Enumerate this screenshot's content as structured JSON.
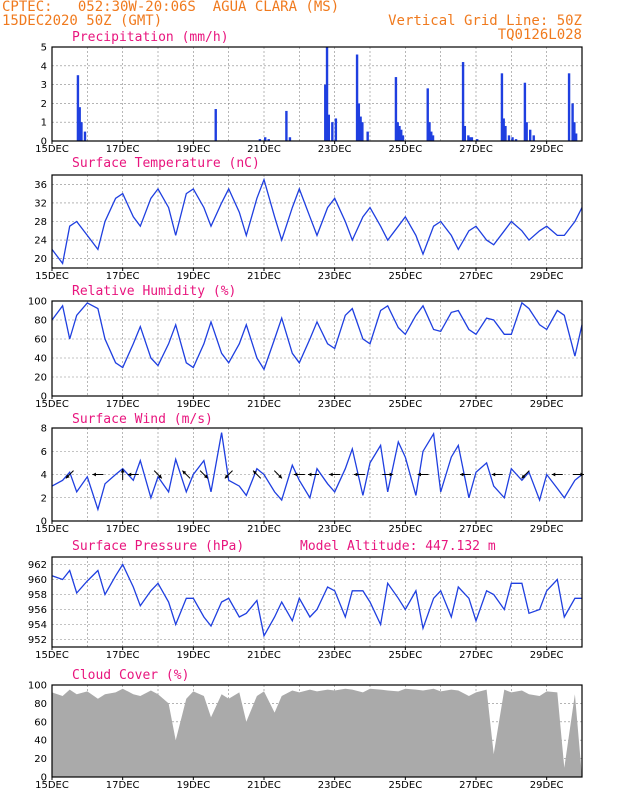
{
  "header": {
    "source_line": "CPTEC:   052:30W-20:06S  AGUA CLARA (MS)",
    "date_line": "15DEC2020 50Z (GMT)",
    "grid_note": "Vertical Grid Line: 50Z",
    "code": "TQ0126L028"
  },
  "colors": {
    "header": "#f07a1e",
    "title": "#e8157e",
    "line": "#1f3fe0",
    "cloud": "#aaaaaa"
  },
  "x_ticks": [
    "15DEC",
    "17DEC",
    "19DEC",
    "21DEC",
    "23DEC",
    "25DEC",
    "27DEC",
    "29DEC"
  ],
  "x_range_days": [
    15,
    30
  ],
  "chart_data": [
    {
      "type": "bar",
      "title": "Precipitation (mm/h)",
      "ylim": [
        0,
        5
      ],
      "yticks": [
        0,
        1,
        2,
        3,
        4,
        5
      ],
      "x": [
        15.7,
        15.75,
        15.8,
        15.9,
        19.6,
        20.85,
        21.0,
        21.1,
        21.6,
        21.7,
        22.7,
        22.75,
        22.8,
        22.9,
        23.0,
        23.6,
        23.65,
        23.7,
        23.75,
        23.9,
        24.7,
        24.75,
        24.8,
        24.85,
        24.9,
        25.6,
        25.65,
        25.7,
        25.75,
        26.6,
        26.65,
        26.75,
        26.8,
        26.85,
        27.0,
        27.7,
        27.75,
        27.8,
        27.9,
        28.0,
        28.1,
        28.35,
        28.4,
        28.5,
        28.6,
        29.6,
        29.7,
        29.75,
        29.8
      ],
      "values": [
        3.5,
        1.8,
        1.0,
        0.5,
        1.7,
        0.1,
        0.2,
        0.1,
        1.6,
        0.2,
        3.0,
        5.0,
        1.4,
        1.0,
        1.2,
        4.6,
        2.0,
        1.3,
        1.0,
        0.5,
        3.4,
        1.0,
        0.8,
        0.6,
        0.3,
        2.8,
        1.0,
        0.5,
        0.3,
        4.2,
        0.8,
        0.3,
        0.2,
        0.2,
        0.1,
        3.6,
        1.2,
        0.8,
        0.3,
        0.2,
        0.1,
        3.1,
        1.0,
        0.6,
        0.3,
        3.6,
        2.0,
        1.0,
        0.4
      ]
    },
    {
      "type": "line",
      "title": "Surface Temperature (nC)",
      "ylim": [
        18,
        38
      ],
      "yticks": [
        20,
        24,
        28,
        32,
        36
      ],
      "x": [
        15.0,
        15.3,
        15.5,
        15.7,
        16.0,
        16.3,
        16.5,
        16.8,
        17.0,
        17.3,
        17.5,
        17.8,
        18.0,
        18.3,
        18.5,
        18.8,
        19.0,
        19.3,
        19.5,
        19.8,
        20.0,
        20.3,
        20.5,
        20.8,
        21.0,
        21.3,
        21.5,
        21.8,
        22.0,
        22.3,
        22.5,
        22.8,
        23.0,
        23.3,
        23.5,
        23.8,
        24.0,
        24.3,
        24.5,
        24.8,
        25.0,
        25.3,
        25.5,
        25.8,
        26.0,
        26.3,
        26.5,
        26.8,
        27.0,
        27.3,
        27.5,
        27.8,
        28.0,
        28.3,
        28.5,
        28.8,
        29.0,
        29.3,
        29.5,
        29.8,
        30.0
      ],
      "values": [
        22.0,
        19.0,
        27.0,
        28.0,
        25.0,
        22.0,
        28.0,
        33.0,
        34.0,
        29.0,
        27.0,
        33.0,
        35.0,
        31.0,
        25.0,
        34.0,
        35.0,
        31.0,
        27.0,
        32.0,
        35.0,
        30.0,
        25.0,
        33.0,
        37.0,
        29.0,
        24.0,
        31.0,
        35.0,
        29.0,
        25.0,
        31.0,
        33.0,
        28.0,
        24.0,
        29.0,
        31.0,
        27.0,
        24.0,
        27.0,
        29.0,
        25.0,
        21.0,
        27.0,
        28.0,
        25.0,
        22.0,
        26.0,
        27.0,
        24.0,
        23.0,
        26.0,
        28.0,
        26.0,
        24.0,
        26.0,
        27.0,
        25.0,
        25.0,
        28.0,
        31.0
      ]
    },
    {
      "type": "line",
      "title": "Relative Humidity (%)",
      "ylim": [
        0,
        100
      ],
      "yticks": [
        0,
        20,
        40,
        60,
        80,
        100
      ],
      "x": [
        15.0,
        15.3,
        15.5,
        15.7,
        16.0,
        16.3,
        16.5,
        16.8,
        17.0,
        17.3,
        17.5,
        17.8,
        18.0,
        18.3,
        18.5,
        18.8,
        19.0,
        19.3,
        19.5,
        19.8,
        20.0,
        20.3,
        20.5,
        20.8,
        21.0,
        21.3,
        21.5,
        21.8,
        22.0,
        22.3,
        22.5,
        22.8,
        23.0,
        23.3,
        23.5,
        23.8,
        24.0,
        24.3,
        24.5,
        24.8,
        25.0,
        25.3,
        25.5,
        25.8,
        26.0,
        26.3,
        26.5,
        26.8,
        27.0,
        27.3,
        27.5,
        27.8,
        28.0,
        28.3,
        28.5,
        28.8,
        29.0,
        29.3,
        29.5,
        29.8,
        30.0
      ],
      "values": [
        80.0,
        95.0,
        60.0,
        85.0,
        98.0,
        92.0,
        60.0,
        35.0,
        30.0,
        55.0,
        73.0,
        40.0,
        32.0,
        55.0,
        75.0,
        35.0,
        30.0,
        55.0,
        78.0,
        45.0,
        35.0,
        55.0,
        75.0,
        40.0,
        28.0,
        60.0,
        82.0,
        45.0,
        35.0,
        60.0,
        78.0,
        55.0,
        50.0,
        85.0,
        92.0,
        60.0,
        55.0,
        90.0,
        95.0,
        72.0,
        65.0,
        85.0,
        95.0,
        70.0,
        68.0,
        88.0,
        90.0,
        70.0,
        65.0,
        82.0,
        80.0,
        65.0,
        65.0,
        98.0,
        92.0,
        75.0,
        70.0,
        90.0,
        85.0,
        42.0,
        75.0
      ]
    },
    {
      "type": "line",
      "title": "Surface Wind (m/s)",
      "ylim": [
        0,
        8
      ],
      "yticks": [
        0,
        2,
        4,
        6,
        8
      ],
      "x": [
        15.0,
        15.3,
        15.5,
        15.7,
        16.0,
        16.3,
        16.5,
        16.8,
        17.0,
        17.3,
        17.5,
        17.8,
        18.0,
        18.3,
        18.5,
        18.8,
        19.0,
        19.3,
        19.5,
        19.8,
        20.0,
        20.3,
        20.5,
        20.8,
        21.0,
        21.3,
        21.5,
        21.8,
        22.0,
        22.3,
        22.5,
        22.8,
        23.0,
        23.3,
        23.5,
        23.8,
        24.0,
        24.3,
        24.5,
        24.8,
        25.0,
        25.3,
        25.5,
        25.8,
        26.0,
        26.3,
        26.5,
        26.8,
        27.0,
        27.3,
        27.5,
        27.8,
        28.0,
        28.3,
        28.5,
        28.8,
        29.0,
        29.3,
        29.5,
        29.8,
        30.0
      ],
      "values": [
        3.0,
        3.5,
        4.2,
        2.5,
        3.8,
        1.0,
        3.2,
        4.0,
        4.5,
        3.5,
        5.2,
        2.0,
        3.8,
        2.5,
        5.3,
        2.5,
        4.0,
        5.2,
        2.5,
        7.6,
        3.5,
        3.0,
        2.2,
        4.5,
        4.0,
        2.5,
        1.8,
        4.8,
        3.5,
        2.0,
        4.5,
        3.2,
        2.5,
        4.5,
        6.2,
        2.2,
        5.0,
        6.5,
        2.5,
        6.8,
        5.5,
        2.2,
        6.0,
        7.5,
        2.5,
        5.5,
        6.5,
        2.0,
        4.2,
        5.0,
        3.0,
        2.0,
        4.5,
        3.5,
        4.2,
        1.8,
        4.0,
        2.8,
        2.0,
        3.5,
        4.0
      ]
    },
    {
      "type": "line",
      "title": "Surface Pressure (hPa)",
      "ylim": [
        951,
        963
      ],
      "yticks": [
        952,
        954,
        956,
        958,
        960,
        962
      ],
      "x": [
        15.0,
        15.3,
        15.5,
        15.7,
        16.0,
        16.3,
        16.5,
        16.8,
        17.0,
        17.3,
        17.5,
        17.8,
        18.0,
        18.3,
        18.5,
        18.8,
        19.0,
        19.3,
        19.5,
        19.8,
        20.0,
        20.3,
        20.5,
        20.8,
        21.0,
        21.3,
        21.5,
        21.8,
        22.0,
        22.3,
        22.5,
        22.8,
        23.0,
        23.3,
        23.5,
        23.8,
        24.0,
        24.3,
        24.5,
        24.8,
        25.0,
        25.3,
        25.5,
        25.8,
        26.0,
        26.3,
        26.5,
        26.8,
        27.0,
        27.3,
        27.5,
        27.8,
        28.0,
        28.3,
        28.5,
        28.8,
        29.0,
        29.3,
        29.5,
        29.8,
        30.0
      ],
      "values": [
        960.5,
        960.0,
        961.2,
        958.2,
        959.8,
        961.2,
        958.0,
        960.5,
        962.0,
        959.0,
        956.5,
        958.5,
        959.5,
        957.0,
        954.0,
        957.5,
        957.5,
        955.0,
        953.8,
        957.0,
        957.5,
        955.0,
        955.5,
        957.2,
        952.5,
        955.0,
        957.0,
        954.5,
        957.5,
        955.0,
        956.0,
        959.0,
        958.5,
        955.0,
        958.5,
        958.5,
        957.0,
        954.0,
        959.5,
        957.5,
        956.0,
        958.5,
        953.5,
        957.5,
        958.5,
        955.0,
        959.0,
        957.5,
        954.5,
        958.5,
        958.0,
        956.0,
        959.5,
        959.5,
        955.5,
        956.0,
        958.5,
        960.0,
        955.0,
        957.5,
        957.5
      ]
    },
    {
      "type": "area",
      "title": "Cloud Cover (%)",
      "ylim": [
        0,
        100
      ],
      "yticks": [
        0,
        20,
        40,
        60,
        80,
        100
      ],
      "x": [
        15.0,
        15.3,
        15.5,
        15.7,
        16.0,
        16.3,
        16.5,
        16.8,
        17.0,
        17.3,
        17.5,
        17.8,
        18.0,
        18.3,
        18.5,
        18.8,
        19.0,
        19.3,
        19.5,
        19.8,
        20.0,
        20.3,
        20.5,
        20.8,
        21.0,
        21.3,
        21.5,
        21.8,
        22.0,
        22.3,
        22.5,
        22.8,
        23.0,
        23.3,
        23.5,
        23.8,
        24.0,
        24.3,
        24.5,
        24.8,
        25.0,
        25.3,
        25.5,
        25.8,
        26.0,
        26.3,
        26.5,
        26.8,
        27.0,
        27.3,
        27.5,
        27.8,
        28.0,
        28.3,
        28.5,
        28.8,
        29.0,
        29.3,
        29.5,
        29.8,
        30.0
      ],
      "values": [
        92.0,
        88.0,
        95.0,
        90.0,
        93.0,
        85.0,
        90.0,
        92.0,
        96.0,
        90.0,
        88.0,
        94.0,
        90.0,
        80.0,
        40.0,
        85.0,
        93.0,
        88.0,
        65.0,
        90.0,
        85.0,
        92.0,
        60.0,
        88.0,
        93.0,
        70.0,
        88.0,
        94.0,
        92.0,
        95.0,
        93.0,
        95.0,
        94.0,
        96.0,
        95.0,
        92.0,
        96.0,
        95.0,
        94.0,
        93.0,
        96.0,
        95.0,
        94.0,
        96.0,
        93.0,
        95.0,
        94.0,
        88.0,
        92.0,
        95.0,
        25.0,
        95.0,
        92.0,
        94.0,
        90.0,
        88.0,
        93.0,
        92.0,
        10.0,
        90.0,
        0.0
      ]
    }
  ],
  "pressure_extra": "Model Altitude: 447.132 m",
  "wind_vectors": [
    {
      "t": 15.5,
      "dir": "sw"
    },
    {
      "t": 16.3,
      "dir": "w"
    },
    {
      "t": 17.0,
      "dir": "n"
    },
    {
      "t": 17.3,
      "dir": "w"
    },
    {
      "t": 18.0,
      "dir": "se"
    },
    {
      "t": 18.8,
      "dir": "nw"
    },
    {
      "t": 19.3,
      "dir": "se"
    },
    {
      "t": 20.0,
      "dir": "sw"
    },
    {
      "t": 20.8,
      "dir": "nw"
    },
    {
      "t": 21.4,
      "dir": "se"
    },
    {
      "t": 22.0,
      "dir": "w"
    },
    {
      "t": 22.4,
      "dir": "w"
    },
    {
      "t": 23.0,
      "dir": "w"
    },
    {
      "t": 23.7,
      "dir": "w"
    },
    {
      "t": 24.5,
      "dir": "e"
    },
    {
      "t": 25.5,
      "dir": "w"
    },
    {
      "t": 26.7,
      "dir": "w"
    },
    {
      "t": 27.6,
      "dir": "w"
    },
    {
      "t": 28.4,
      "dir": "sw"
    },
    {
      "t": 29.3,
      "dir": "w"
    },
    {
      "t": 29.9,
      "dir": "e"
    }
  ]
}
